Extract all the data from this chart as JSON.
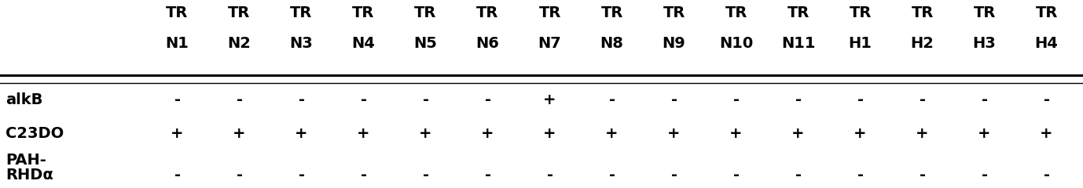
{
  "col_headers_line1": [
    "TR",
    "TR",
    "TR",
    "TR",
    "TR",
    "TR",
    "TR",
    "TR",
    "TR",
    "TR",
    "TR",
    "TR",
    "TR",
    "TR",
    "TR"
  ],
  "col_headers_line2": [
    "N1",
    "N2",
    "N3",
    "N4",
    "N5",
    "N6",
    "N7",
    "N8",
    "N9",
    "N10",
    "N11",
    "H1",
    "H2",
    "H3",
    "H4"
  ],
  "row_labels_line1": [
    "alkB",
    "C23DO",
    "PAH-"
  ],
  "row_labels_line2": [
    "",
    "",
    "RHDα"
  ],
  "data": [
    [
      "-",
      "-",
      "-",
      "-",
      "-",
      "-",
      "+",
      "-",
      "-",
      "-",
      "-",
      "-",
      "-",
      "-",
      "-"
    ],
    [
      "+",
      "+",
      "+",
      "+",
      "+",
      "+",
      "+",
      "+",
      "+",
      "+",
      "+",
      "+",
      "+",
      "+",
      "+"
    ],
    [
      "-",
      "-",
      "-",
      "-",
      "-",
      "-",
      "-",
      "-",
      "-",
      "-",
      "-",
      "-",
      "-",
      "-",
      "-"
    ]
  ],
  "header_fontsize": 14,
  "cell_fontsize": 14,
  "row_label_fontsize": 14,
  "background_color": "#ffffff"
}
